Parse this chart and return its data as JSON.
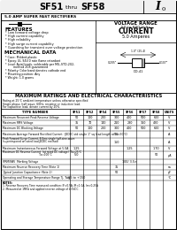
{
  "title_left": "SF51",
  "title_thru": "THRU",
  "title_right": "SF58",
  "subtitle": "5.0 AMP SUPER FAST RECTIFIERS",
  "io_symbol": "I",
  "io_sub": "o",
  "voltage_range_title": "VOLTAGE RANGE",
  "voltage_range": "50 to 600 Volts",
  "current_title": "CURRENT",
  "current_value": "5.0 Amperes",
  "features_title": "FEATURES",
  "features": [
    "* Low forward voltage drop",
    "* High current capability",
    "* High reliability",
    "* High surge current capability",
    "* Guardring for transient over voltage protection"
  ],
  "mech_title": "MECHANICAL DATA",
  "mech_data": [
    "* Case: Molded plastic",
    "* Epoxy: UL 94V-0 rate flame retardant",
    "* Lead: Axial leads, solderable per MIL-STD-202,",
    "         method 208 guaranteed",
    "* Polarity: Color band denotes cathode end",
    "* Mounting position: Any",
    "* Weight: 1.0 grams"
  ],
  "table_title": "MAXIMUM RATINGS AND ELECTRICAL CHARACTERISTICS",
  "table_note1": "Rating at 25°C ambient temperature unless otherwise specified",
  "table_note2": "Single phase, half wave, 60Hz, resistive or inductive load.",
  "table_note3": "For capacitive load, derate current by 20%.",
  "col_headers": [
    "SF51",
    "SF52",
    "SF54",
    "SF55",
    "SF56",
    "SF57",
    "SF58",
    "UNITS"
  ],
  "rows": [
    {
      "label": "Maximum Recurrent Peak Reverse Voltage",
      "vals": [
        "50",
        "100",
        "200",
        "300",
        "400",
        "500",
        "600",
        "V"
      ]
    },
    {
      "label": "Maximum RMS Voltage",
      "vals": [
        "35",
        "70",
        "140",
        "210",
        "280",
        "350",
        "420",
        "V"
      ]
    },
    {
      "label": "Maximum DC Blocking Voltage",
      "vals": [
        "50",
        "100",
        "200",
        "300",
        "400",
        "500",
        "600",
        "V"
      ]
    },
    {
      "label": "Maximum Average Forward Rectified Current  (JEDEC std single 1\" sq lead length at Ta=50°C)",
      "vals": [
        "",
        "",
        "",
        "5.0",
        "",
        "",
        "",
        "A"
      ]
    },
    {
      "label": "Peak Forward Surge Current, 8.0ms single half-sine-wave\n(superimposed on rated load-JEDEC method)",
      "vals": [
        "",
        "",
        "",
        "150",
        "",
        "",
        "",
        "A"
      ]
    },
    {
      "label": "Maximum Instantaneous Forward Voltage at 5.0A",
      "vals": [
        "1.25",
        "",
        "",
        "",
        "1.25",
        "",
        "1.70",
        "V"
      ]
    },
    {
      "label": "Maximum DC Reverse Current  (at rated DC voltage)  Ta=25°C\n                                               Ta=100°C",
      "vals": [
        "5.0",
        "",
        "",
        "",
        "",
        "",
        "50",
        "μA"
      ]
    },
    {
      "label": "IFRM/IFAV  Marking Voltage",
      "vals": [
        "",
        "",
        "",
        "",
        "100/ 3.5×",
        "",
        "",
        ""
      ]
    },
    {
      "label": "Maximum Reverse Recovery Time (Note 1)",
      "vals": [
        "",
        "",
        "",
        "35",
        "",
        "",
        "",
        "ns"
      ]
    },
    {
      "label": "Typical Junction Capacitance (Note 2)",
      "vals": [
        "",
        "",
        "",
        "50",
        "",
        "",
        "",
        "pF"
      ]
    },
    {
      "label": "Operating and Storage Temperature Range Tj, Tstg",
      "vals": [
        "-65 to +150",
        "",
        "",
        "",
        "",
        "",
        "",
        "°C"
      ]
    }
  ],
  "notes": [
    "NOTES:",
    "1. Reverse Recovery Time measured condition: IF=0.5A, IR=1.0A, Irr=0.25A",
    "2. Measured at 1MHz and applied reverse voltage of 4.0VDC."
  ]
}
